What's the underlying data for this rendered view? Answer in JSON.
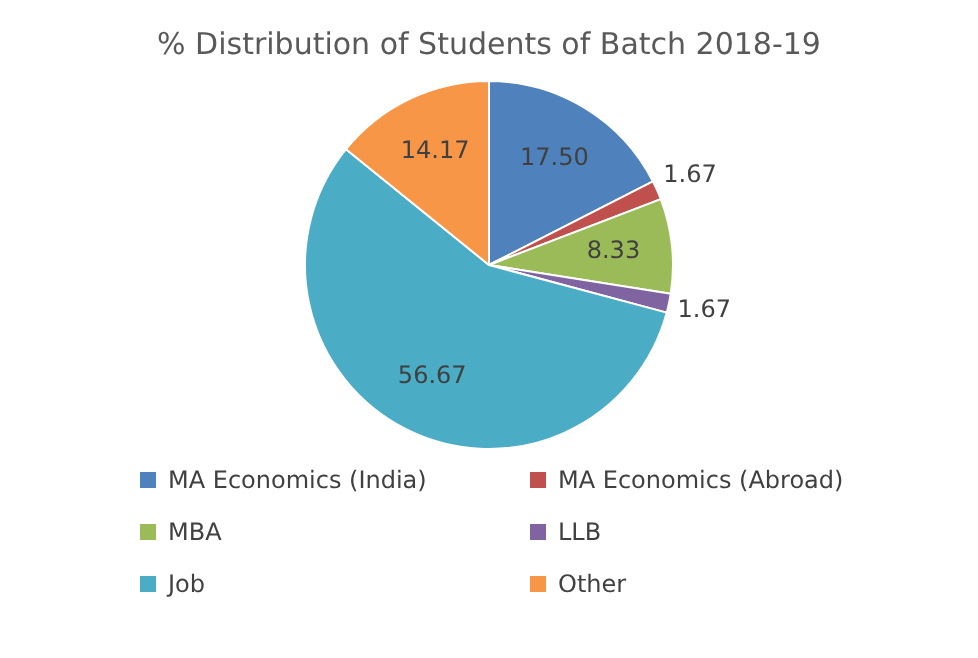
{
  "chart_data": {
    "type": "pie",
    "title": "% Distribution of Students of Batch 2018-19",
    "categories": [
      "MA Economics (India)",
      "MA Economics (Abroad)",
      "MBA",
      "LLB",
      "Job",
      "Other"
    ],
    "values": [
      17.5,
      1.67,
      8.33,
      1.67,
      56.67,
      14.17
    ],
    "value_labels": [
      "17.50",
      "1.67",
      "8.33",
      "1.67",
      "56.67",
      "14.17"
    ],
    "colors": [
      "#4f81bd",
      "#c0504d",
      "#9bbb59",
      "#8064a2",
      "#4bacc6",
      "#f79646"
    ],
    "legend": "bottom"
  }
}
